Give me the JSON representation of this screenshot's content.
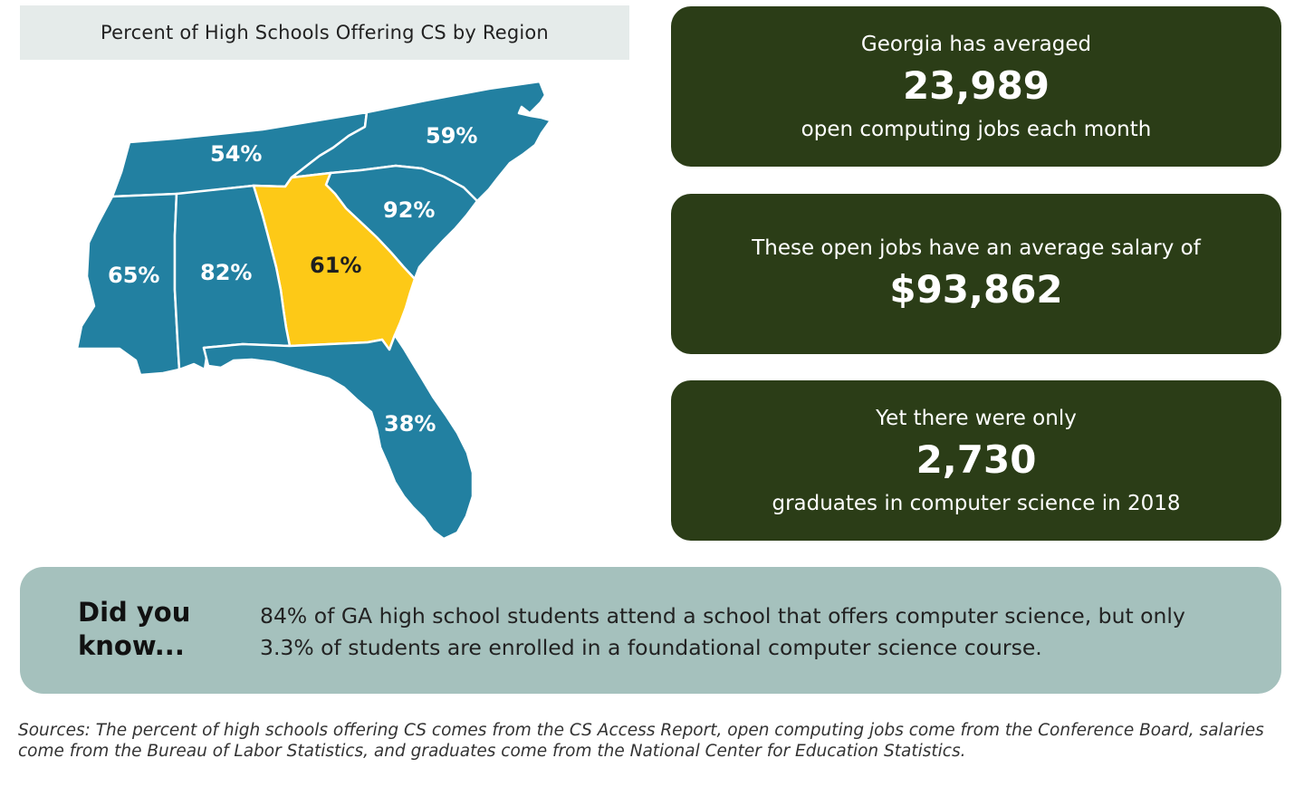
{
  "map": {
    "title": "Percent of High Schools Offering CS by Region",
    "colors": {
      "region": "#2280a1",
      "georgia": "#fdc917"
    },
    "states": [
      {
        "label": "54%",
        "value": 54
      },
      {
        "label": "59%",
        "value": 59
      },
      {
        "label": "92%",
        "value": 92
      },
      {
        "label": "65%",
        "value": 65
      },
      {
        "label": "82%",
        "value": 82
      },
      {
        "label": "61%",
        "value": 61
      },
      {
        "label": "38%",
        "value": 38
      }
    ]
  },
  "stats": [
    {
      "line1": "Georgia has averaged",
      "number": "23,989",
      "line2": "open computing jobs each month"
    },
    {
      "line1": "These open jobs have an average salary of",
      "number": "$93,862"
    },
    {
      "line1": "Yet there were only",
      "number": "2,730",
      "line2": "graduates in computer science in 2018"
    }
  ],
  "did_you_know": {
    "heading": "Did you know...",
    "body": "84% of GA high school students attend a school that offers computer science, but only 3.3% of students are enrolled in a foundational computer science course."
  },
  "sources": "Sources: The percent of high schools offering CS comes from the CS Access Report, open computing jobs come from the Conference Board, salaries come from the Bureau of Labor Statistics, and graduates come from the National Center for Education Statistics.",
  "colors": {
    "card_bg": "#2b3d17",
    "did_box_bg": "#a5c1bd",
    "title_bg": "#e5ebea"
  }
}
